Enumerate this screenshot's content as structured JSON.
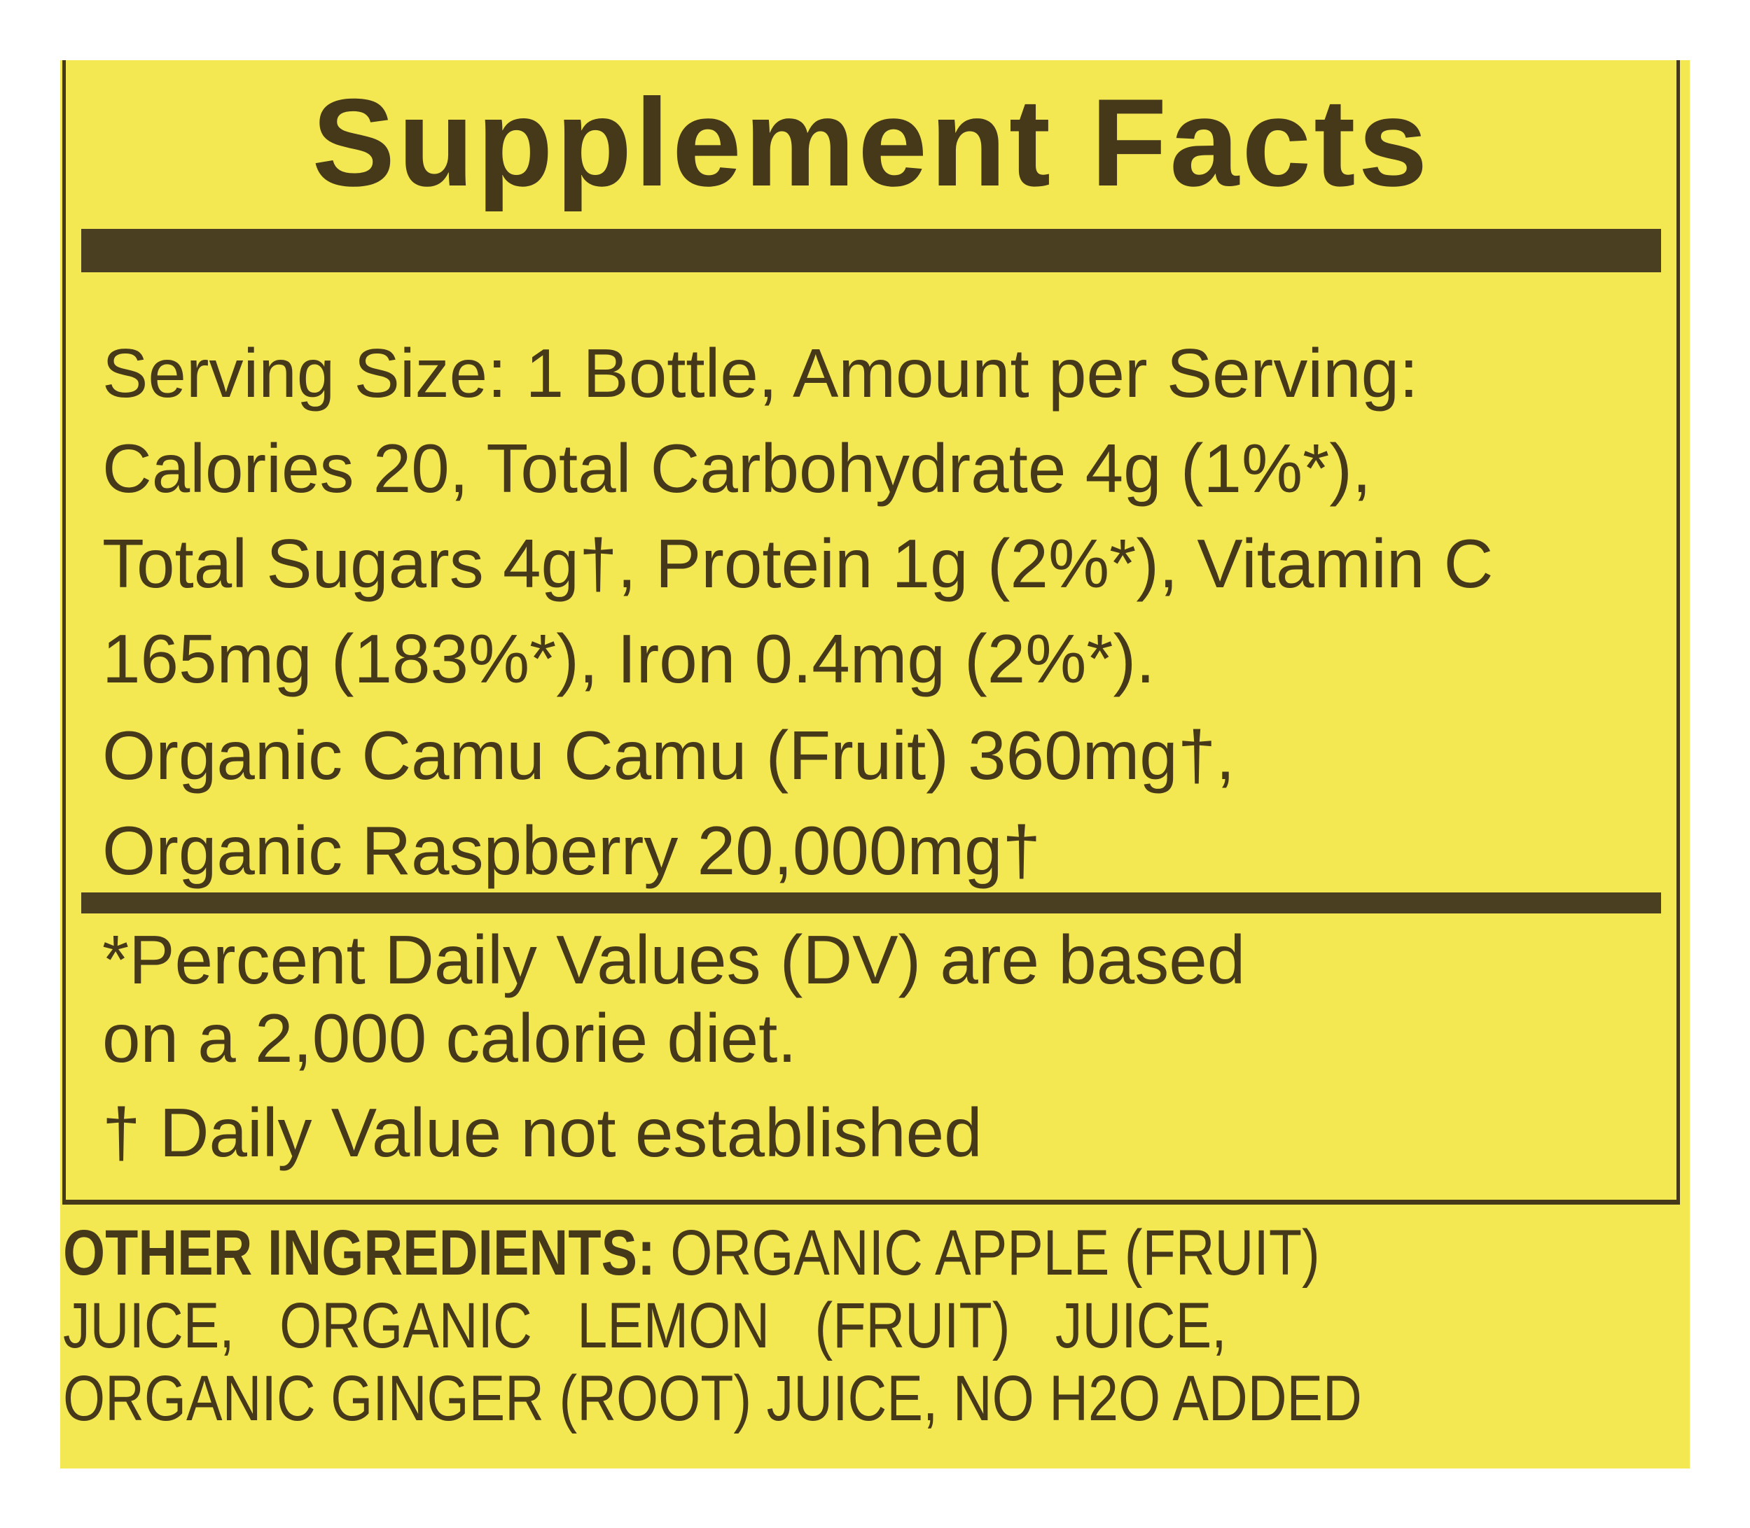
{
  "title": "Supplement Facts",
  "facts_lines": [
    "Serving Size: 1 Bottle, Amount per Serving:",
    "Calories 20, Total Carbohydrate 4g (1%*),",
    "Total Sugars 4g†, Protein 1g (2%*),  Vitamin C",
    "165mg (183%*), Iron 0.4mg (2%*).",
    "Organic Camu Camu (Fruit) 360mg†,",
    "Organic Raspberry 20,000mg†"
  ],
  "footnotes": [
    "*Percent Daily Values (DV) are based",
    "on a 2,000 calorie diet.",
    "† Daily Value not established"
  ],
  "other_ingredients": {
    "heading": "OTHER INGREDIENTS:",
    "line1": "ORGANIC APPLE (FRUIT)",
    "line2": "JUICE,   ORGANIC   LEMON   (FRUIT)   JUICE,",
    "line3": "ORGANIC GINGER (ROOT) JUICE, NO H2O ADDED"
  },
  "colors": {
    "background": "#f4e852",
    "ink": "#45391a"
  }
}
